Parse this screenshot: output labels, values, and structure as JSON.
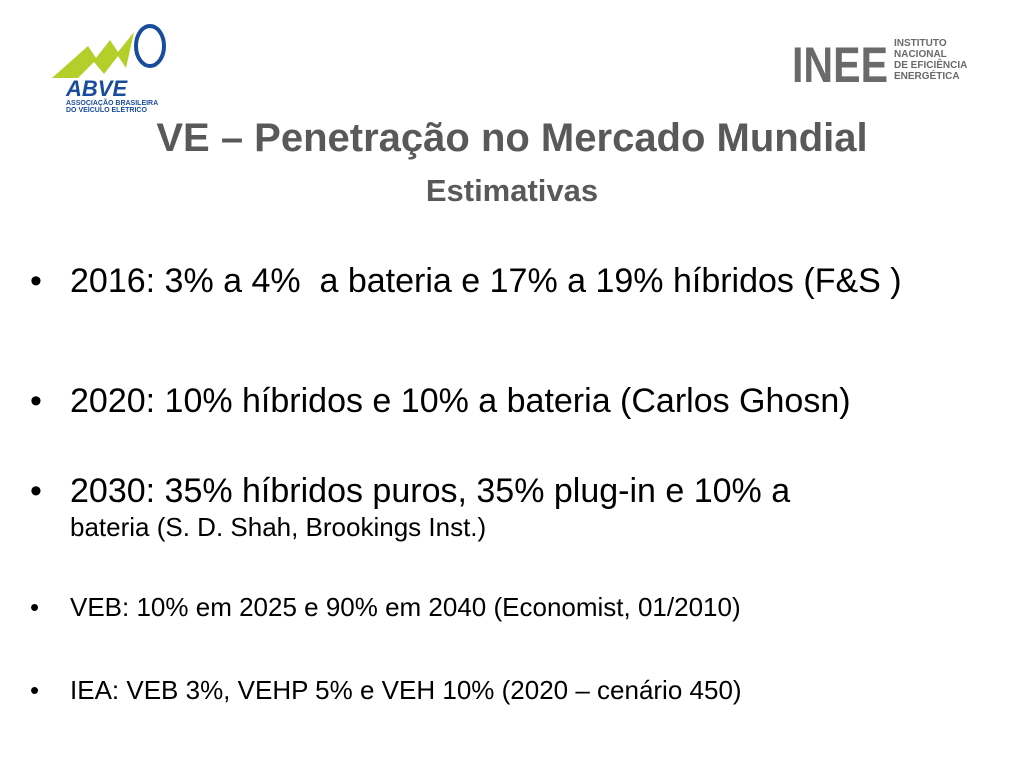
{
  "header": {
    "left_logo": {
      "name": "ABVE",
      "lines": [
        "ASSOCIAÇÃO BRASILEIRA",
        "DO VEÍCULO ELÉTRICO"
      ]
    },
    "right_logo": {
      "name": "INEE",
      "lines": [
        "INSTITUTO",
        "NACIONAL",
        "DE EFICIÊNCIA",
        "ENERGÉTICA"
      ]
    }
  },
  "title": "VE – Penetração no Mercado Mundial",
  "subtitle": "Estimativas",
  "bullets": [
    {
      "parts": [
        "2016: 3% a 4%  a bateria e 17% a 19% híbridos (F&S )"
      ]
    },
    {
      "parts": [
        "2020: 10% híbridos e 10% a bateria (Carlos Ghosn)"
      ]
    },
    {
      "parts": [
        "2030: 35% híbridos puros, 35% plug-in e 10% a",
        "bateria (S. D. Shah, Brookings Inst.)"
      ]
    },
    {
      "parts": [
        "VEB: 10% em 2025 e 90% em 2040 (Economist, 01/2010)"
      ]
    },
    {
      "parts": [
        "IEA: VEB 3%, VEHP 5% e VEH 10% (2020 – cenário 450)"
      ]
    }
  ]
}
